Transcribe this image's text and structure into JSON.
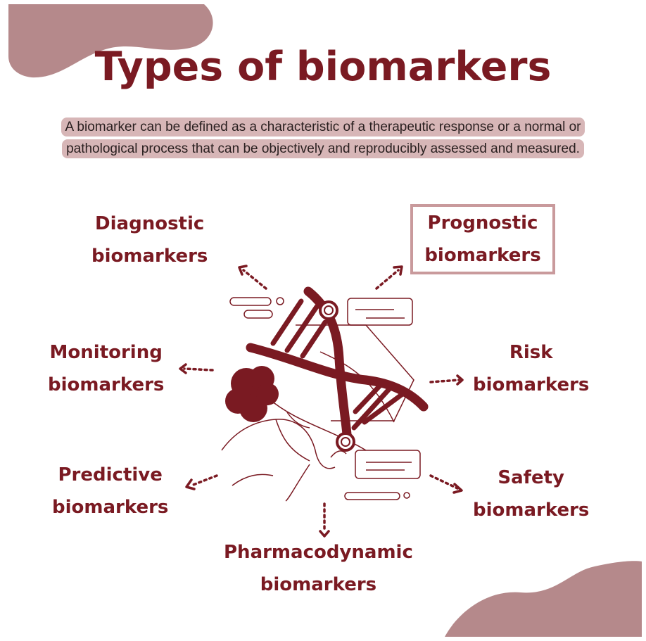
{
  "title": "Types of biomarkers",
  "description": "A biomarker can be defined as a characteristic of a therapeutic response or a normal or pathological process that can be objectively and reproducibly assessed and measured.",
  "colors": {
    "primary": "#7a1a22",
    "blob": "#b5898b",
    "highlight": "#d7b6b7",
    "box_border": "#c99a9c"
  },
  "biomarkers": [
    {
      "line1": "Diagnostic",
      "line2": "biomarkers"
    },
    {
      "line1": "Prognostic",
      "line2": "biomarkers"
    },
    {
      "line1": "Monitoring",
      "line2": "biomarkers"
    },
    {
      "line1": "Risk",
      "line2": "biomarkers"
    },
    {
      "line1": "Predictive",
      "line2": "biomarkers"
    },
    {
      "line1": "Safety",
      "line2": "biomarkers"
    },
    {
      "line1": "Pharmacodynamic",
      "line2": "biomarkers"
    }
  ]
}
